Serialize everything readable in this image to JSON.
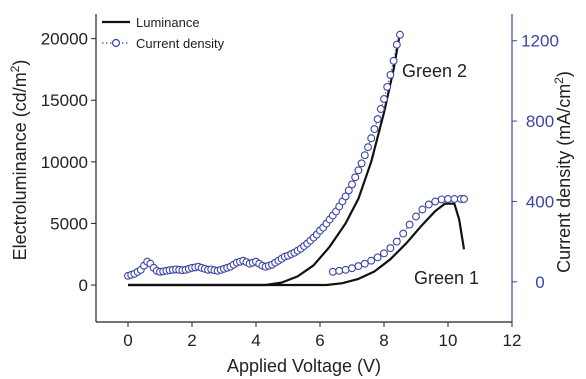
{
  "chart_data": {
    "type": "line",
    "xlabel": "Applied Voltage (V)",
    "ylabel_left": "Electroluminance (cd/m",
    "ylabel_left_sup": "2",
    "ylabel_left_close": ")",
    "ylabel_right": "Current density (mA/cm",
    "ylabel_right_sup": "2",
    "ylabel_right_close": ")",
    "xlim": [
      -1,
      12
    ],
    "ylim_left": [
      -3000,
      22000
    ],
    "ylim_right": [
      -200,
      1333
    ],
    "x_ticks": [
      0,
      2,
      4,
      6,
      8,
      10,
      12
    ],
    "x_tick_labels": [
      "0",
      "2",
      "4",
      "6",
      "8",
      "10",
      "12"
    ],
    "y_left_ticks": [
      0,
      5000,
      10000,
      15000,
      20000
    ],
    "y_left_tick_labels": [
      "0",
      "5000",
      "10000",
      "15000",
      "20000"
    ],
    "y_right_ticks": [
      0,
      400,
      800,
      1200
    ],
    "y_right_tick_labels": [
      "0",
      "400",
      "800",
      "1200"
    ],
    "legend": {
      "position": "top-left",
      "entries": [
        "Luminance",
        "Current density"
      ]
    },
    "annotations": [
      "Green 2",
      "Green 1"
    ],
    "colors": {
      "luminance": "#111111",
      "current": "#3b45a6",
      "right_axis": "#3b45a6"
    },
    "series": [
      {
        "device": "Green 2",
        "kind": "luminance",
        "axis": "left",
        "x": [
          0,
          4.3,
          4.8,
          5.3,
          5.8,
          6.3,
          6.8,
          7.2,
          7.6,
          8.0,
          8.3,
          8.5
        ],
        "y": [
          0,
          0,
          200,
          700,
          1600,
          3100,
          5000,
          7000,
          10000,
          14000,
          17500,
          20500
        ]
      },
      {
        "device": "Green 1",
        "kind": "luminance",
        "axis": "left",
        "x": [
          0,
          6.2,
          6.7,
          7.2,
          7.7,
          8.2,
          8.7,
          9.2,
          9.6,
          9.9,
          10.2,
          10.35,
          10.5
        ],
        "y": [
          0,
          0,
          150,
          500,
          1100,
          2100,
          3400,
          4900,
          6000,
          6600,
          6600,
          5300,
          2900
        ]
      },
      {
        "device": "Green 2",
        "kind": "current",
        "axis": "right",
        "x": [
          0,
          0.1,
          0.2,
          0.3,
          0.4,
          0.5,
          0.6,
          0.7,
          0.8,
          0.9,
          1.0,
          1.1,
          1.2,
          1.3,
          1.4,
          1.5,
          1.6,
          1.7,
          1.8,
          1.9,
          2.0,
          2.1,
          2.2,
          2.3,
          2.4,
          2.5,
          2.6,
          2.7,
          2.8,
          2.9,
          3.0,
          3.1,
          3.2,
          3.3,
          3.4,
          3.5,
          3.6,
          3.7,
          3.8,
          3.9,
          4.0,
          4.1,
          4.2,
          4.3,
          4.4,
          4.5,
          4.6,
          4.7,
          4.8,
          4.9,
          5.0,
          5.1,
          5.2,
          5.3,
          5.4,
          5.5,
          5.6,
          5.7,
          5.8,
          5.9,
          6.0,
          6.1,
          6.2,
          6.3,
          6.4,
          6.5,
          6.6,
          6.7,
          6.8,
          6.9,
          7.0,
          7.1,
          7.2,
          7.3,
          7.4,
          7.5,
          7.6,
          7.7,
          7.8,
          7.9,
          8.0,
          8.1,
          8.2,
          8.3,
          8.4,
          8.5
        ],
        "y": [
          30,
          35,
          40,
          50,
          60,
          80,
          100,
          90,
          70,
          55,
          50,
          52,
          55,
          58,
          60,
          62,
          60,
          58,
          60,
          65,
          70,
          72,
          75,
          70,
          65,
          60,
          62,
          58,
          55,
          60,
          65,
          70,
          75,
          85,
          95,
          100,
          105,
          98,
          90,
          95,
          100,
          90,
          80,
          75,
          80,
          85,
          95,
          105,
          115,
          125,
          130,
          138,
          145,
          155,
          165,
          178,
          190,
          205,
          220,
          235,
          255,
          270,
          290,
          310,
          330,
          350,
          375,
          400,
          425,
          455,
          485,
          520,
          555,
          590,
          630,
          670,
          715,
          760,
          810,
          860,
          910,
          970,
          1030,
          1100,
          1180,
          1230
        ]
      },
      {
        "device": "Green 1",
        "kind": "current",
        "axis": "right",
        "x": [
          6.4,
          6.6,
          6.8,
          7.0,
          7.2,
          7.4,
          7.6,
          7.8,
          8.0,
          8.2,
          8.4,
          8.6,
          8.8,
          9.0,
          9.2,
          9.4,
          9.6,
          9.8,
          10.0,
          10.2,
          10.4,
          10.5
        ],
        "y": [
          50,
          55,
          60,
          68,
          78,
          90,
          105,
          122,
          142,
          168,
          200,
          240,
          285,
          325,
          360,
          385,
          400,
          410,
          412,
          412,
          412,
          412
        ]
      }
    ]
  }
}
